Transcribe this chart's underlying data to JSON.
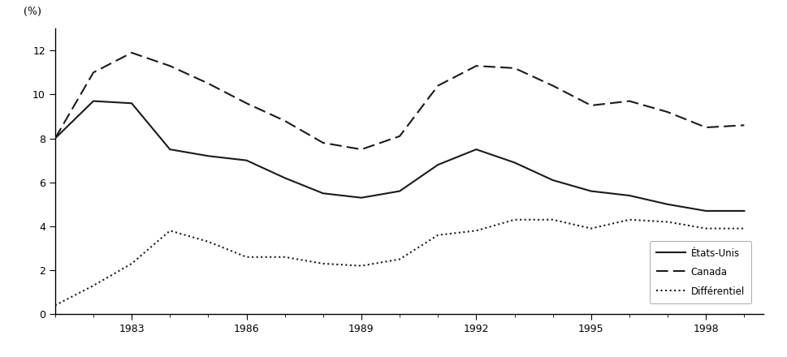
{
  "years": [
    1981,
    1982,
    1983,
    1984,
    1985,
    1986,
    1987,
    1988,
    1989,
    1990,
    1991,
    1992,
    1993,
    1994,
    1995,
    1996,
    1997,
    1998,
    1999
  ],
  "etats_unis": [
    8.0,
    9.7,
    9.6,
    7.5,
    7.2,
    7.0,
    6.2,
    5.5,
    5.3,
    5.6,
    6.8,
    7.5,
    6.9,
    6.1,
    5.6,
    5.4,
    5.0,
    4.7,
    4.7
  ],
  "canada": [
    8.0,
    11.0,
    11.9,
    11.3,
    10.5,
    9.6,
    8.8,
    7.8,
    7.5,
    8.1,
    10.4,
    11.3,
    11.2,
    10.4,
    9.5,
    9.7,
    9.2,
    8.5,
    8.6
  ],
  "differentiel": [
    0.4,
    1.3,
    2.3,
    3.8,
    3.3,
    2.6,
    2.6,
    2.3,
    2.2,
    2.5,
    3.6,
    3.8,
    4.3,
    4.3,
    3.9,
    4.3,
    4.2,
    3.9,
    3.9
  ],
  "xlim": [
    1981,
    1999.5
  ],
  "ylim": [
    0,
    13
  ],
  "yticks": [
    0,
    2,
    4,
    6,
    8,
    10,
    12
  ],
  "xtick_major": [
    1983,
    1986,
    1989,
    1992,
    1995,
    1998
  ],
  "xtick_minor": [
    1981,
    1982,
    1983,
    1984,
    1985,
    1986,
    1987,
    1988,
    1989,
    1990,
    1991,
    1992,
    1993,
    1994,
    1995,
    1996,
    1997,
    1998,
    1999
  ],
  "ylabel": "(%)",
  "line_color": "#1a1a1a",
  "legend_labels": [
    "États-Unis",
    "Canada",
    "Différentiel"
  ],
  "bg_color": "#ffffff"
}
